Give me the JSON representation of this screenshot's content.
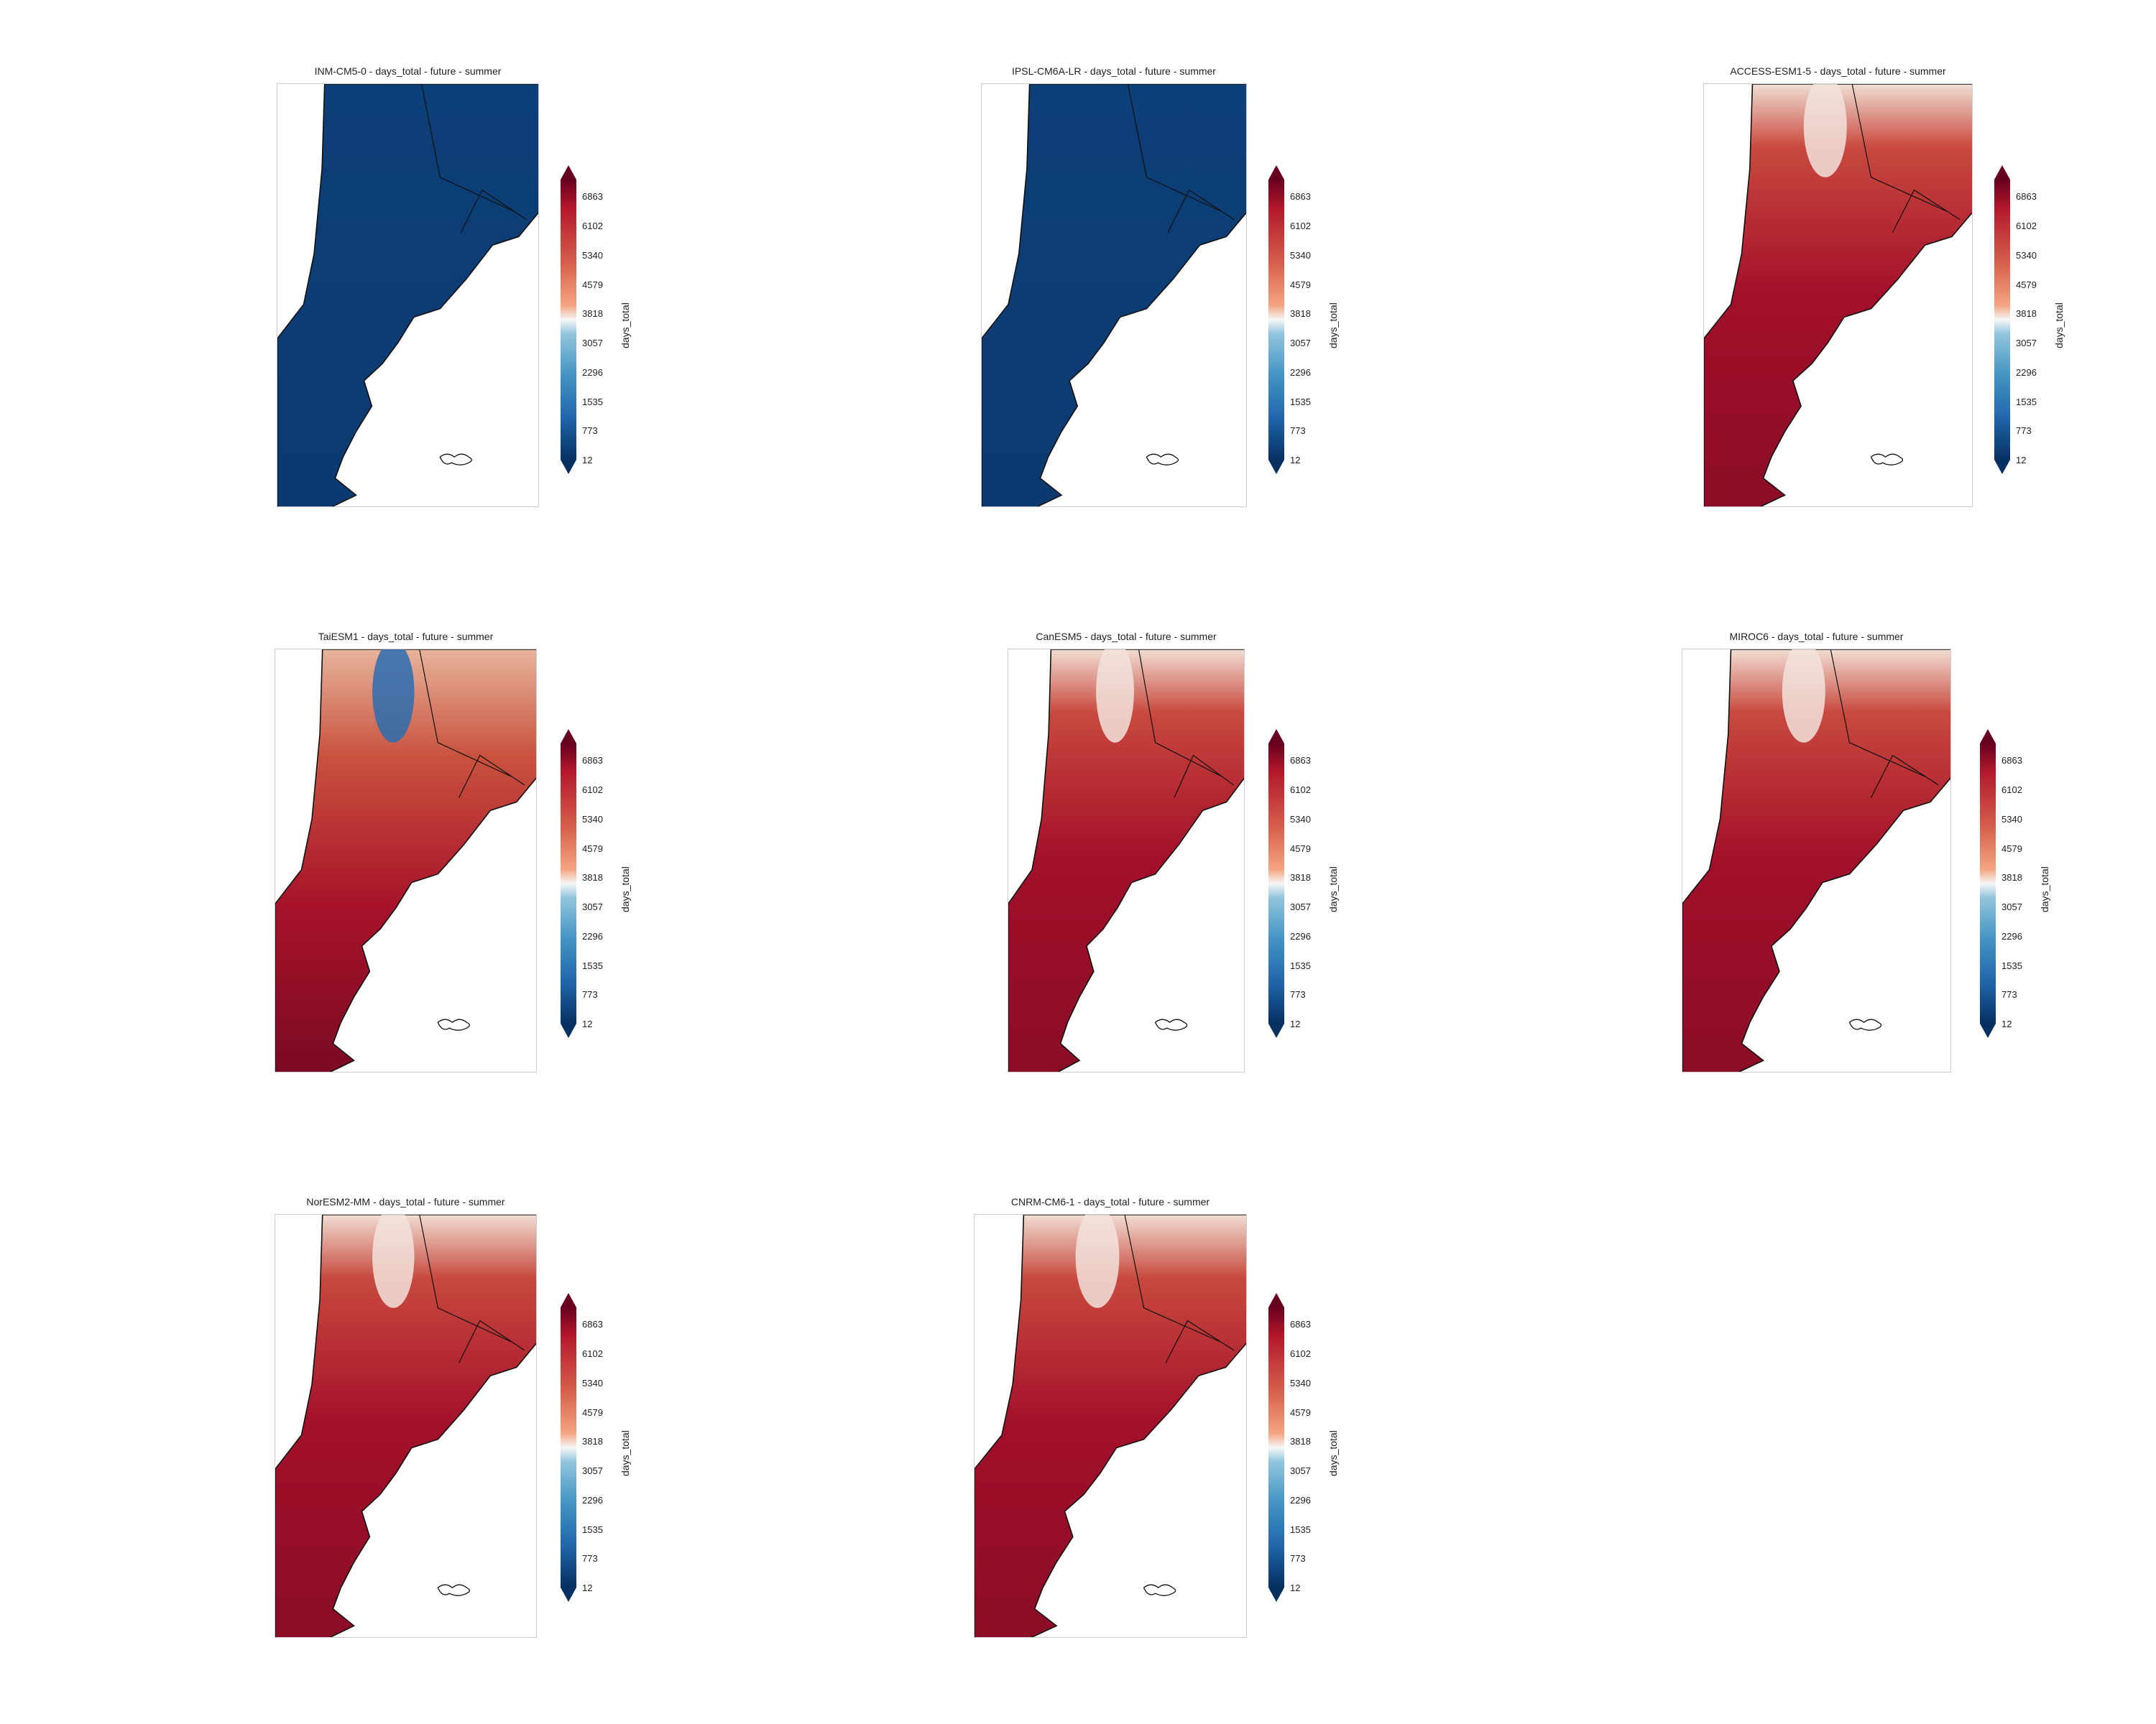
{
  "panels": [
    {
      "title": "INM-CM5-0 - days_total - future - summer",
      "pattern": "low"
    },
    {
      "title": "IPSL-CM6A-LR - days_total - future - summer",
      "pattern": "low"
    },
    {
      "title": "ACCESS-ESM1-5 - days_total - future - summer",
      "pattern": "high"
    },
    {
      "title": "TaiESM1 - days_total - future - summer",
      "pattern": "mixed"
    },
    {
      "title": "CanESM5 - days_total - future - summer",
      "pattern": "high"
    },
    {
      "title": "MIROC6 - days_total - future - summer",
      "pattern": "high"
    },
    {
      "title": "NorESM2-MM - days_total - future - summer",
      "pattern": "high"
    },
    {
      "title": "CNRM-CM6-1 - days_total - future - summer",
      "pattern": "high"
    }
  ],
  "colorbar": {
    "label": "days_total",
    "ticks": [
      "6863",
      "6102",
      "5340",
      "4579",
      "3818",
      "3057",
      "2296",
      "1535",
      "773",
      "12"
    ],
    "colormap": "RdBu_r",
    "low_color": "#053061",
    "mid_color": "#f7f7f7",
    "high_color": "#67001f"
  }
}
